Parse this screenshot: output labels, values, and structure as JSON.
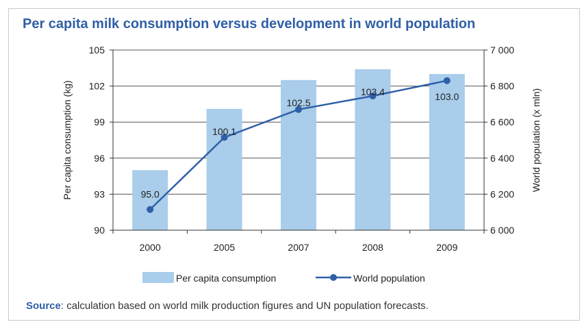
{
  "title": "Per capita milk consumption versus development in world population",
  "source": {
    "label": "Source",
    "text": ": calculation based on world milk production figures and UN population forecasts."
  },
  "colors": {
    "title": "#2f5fa6",
    "bar": "#a9cdea",
    "line": "#2f5fa6",
    "axis": "#333333"
  },
  "chart_data": {
    "type": "bar",
    "categories": [
      "2000",
      "2005",
      "2007",
      "2008",
      "2009"
    ],
    "series": [
      {
        "name": "Per capita consumption",
        "type": "bar",
        "axis": "left",
        "values": [
          95.0,
          100.1,
          102.5,
          103.4,
          103.0
        ],
        "labels": [
          "95.0",
          "100.1",
          "102.5",
          "103.4",
          "103.0"
        ]
      },
      {
        "name": "World population",
        "type": "line",
        "axis": "right",
        "values": [
          6115,
          6515,
          6670,
          6745,
          6830
        ]
      }
    ],
    "ylabel": "Per capita consumption (kg)",
    "ylim": [
      90,
      105
    ],
    "yticks": [
      90,
      93,
      96,
      99,
      102,
      105
    ],
    "y2label": "World population (x mln)",
    "y2lim": [
      6000,
      7000
    ],
    "y2ticks": [
      6000,
      6200,
      6400,
      6600,
      6800,
      7000
    ],
    "y2ticklabels": [
      "6 000",
      "6 200",
      "6 400",
      "6 600",
      "6 800",
      "7 000"
    ],
    "grid": true,
    "legend_position": "bottom"
  }
}
